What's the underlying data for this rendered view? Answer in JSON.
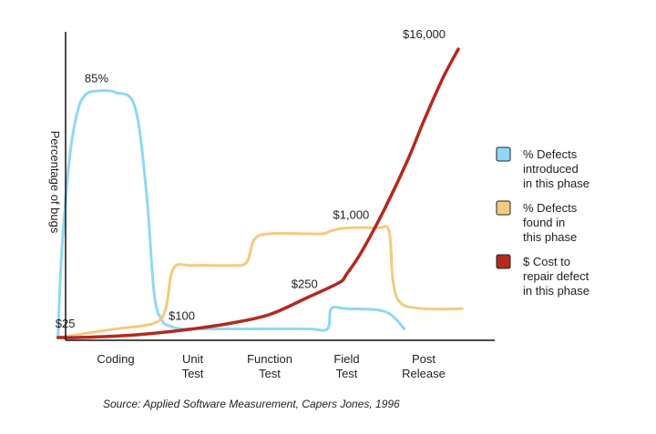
{
  "chart_data": {
    "type": "line",
    "title": "",
    "xlabel": "",
    "ylabel": "Percentage of bugs",
    "categories": [
      [
        "Coding"
      ],
      [
        "Unit",
        "Test"
      ],
      [
        "Function",
        "Test"
      ],
      [
        "Field",
        "Test"
      ],
      [
        "Post",
        "Release"
      ]
    ],
    "grid": false,
    "legend_position": "right",
    "series": [
      {
        "name": "% Defects introduced in this phase",
        "legend_lines": [
          "% Defects",
          "introduced",
          "in this phase"
        ],
        "color": "#8fd8f4",
        "x": [
          -0.75,
          -0.7,
          -0.6,
          -0.5,
          -0.4,
          -0.25,
          0,
          0.25,
          0.4,
          0.5,
          0.6,
          0.7,
          0.85,
          1,
          1.5,
          2,
          2.5,
          2.75,
          2.8,
          3,
          3.5,
          3.75
        ],
        "values": [
          0,
          30,
          62,
          78,
          84,
          85.5,
          85,
          80,
          50,
          15,
          6,
          4,
          3,
          3,
          3,
          3,
          3,
          3,
          10,
          10,
          9,
          3
        ]
      },
      {
        "name": "% Defects found in this phase",
        "legend_lines": [
          "% Defects",
          "found in",
          "this phase"
        ],
        "color": "#f5c97f",
        "x": [
          -0.75,
          -0.5,
          0,
          0.5,
          0.65,
          0.75,
          1,
          1.5,
          1.7,
          1.8,
          2,
          2.5,
          2.7,
          2.8,
          3,
          3.4,
          3.55,
          3.6,
          3.7,
          4,
          4.5
        ],
        "values": [
          0,
          1,
          3,
          5,
          10,
          24,
          25,
          25,
          26,
          34,
          36,
          36,
          36,
          37,
          38,
          38,
          37,
          20,
          12,
          10,
          10
        ]
      },
      {
        "name": "$ Cost to repair defect in this phase",
        "legend_lines": [
          "$ Cost to",
          "repair defect",
          "in this phase"
        ],
        "color": "#b22a20",
        "x": [
          -0.75,
          -0.5,
          0,
          0.5,
          1,
          1.5,
          2,
          2.5,
          2.9,
          3,
          3.2,
          3.5,
          3.8,
          4,
          4.25,
          4.45
        ],
        "values": [
          0,
          0,
          0.5,
          1.5,
          3,
          5,
          8,
          14,
          19,
          22,
          30,
          45,
          62,
          75,
          90,
          100
        ]
      }
    ],
    "annotations": [
      {
        "text": "85%",
        "x": -0.25,
        "y": 86
      },
      {
        "text": "$25",
        "x": -0.5,
        "y": 1
      },
      {
        "text": "$100",
        "x": 1,
        "y": 3
      },
      {
        "text": "$250",
        "x": 2.5,
        "y": 14
      },
      {
        "text": "$1,000",
        "x": 3.2,
        "y": 38
      },
      {
        "text": "$16,000",
        "x": 4.45,
        "y": 100
      }
    ],
    "source": "Source: Applied Software Measurement, Capers Jones, 1996"
  }
}
